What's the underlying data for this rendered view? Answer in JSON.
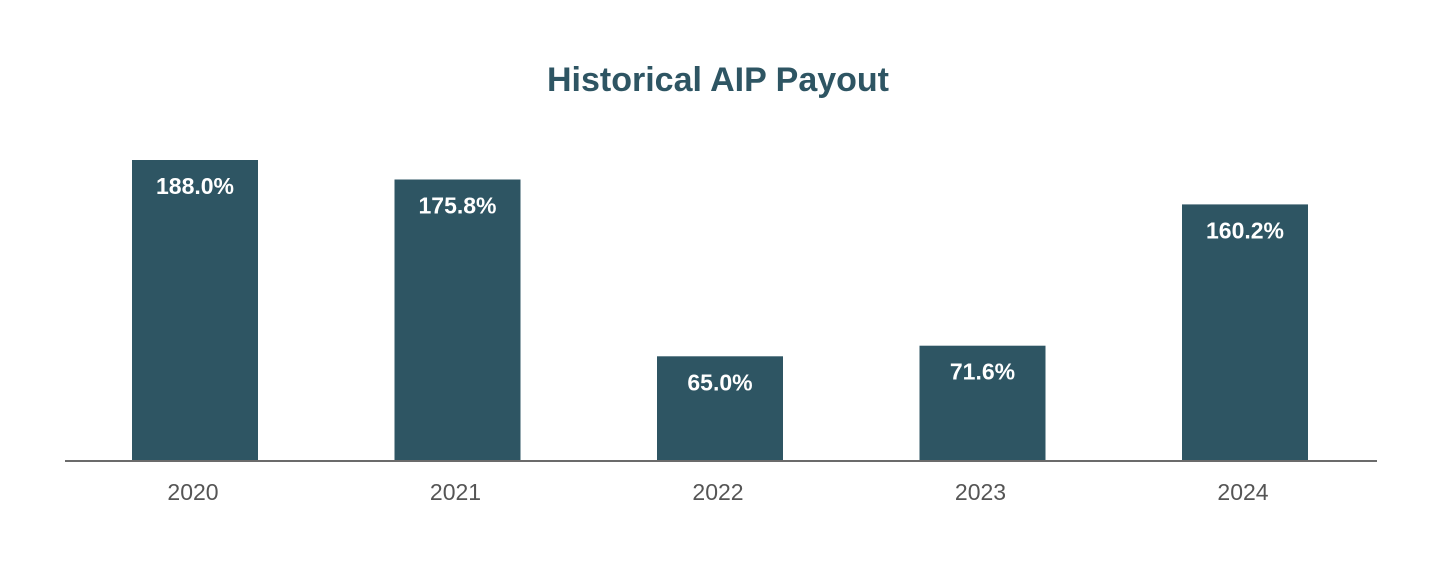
{
  "chart_data": {
    "type": "bar",
    "title": "Historical AIP Payout",
    "xlabel": "",
    "ylabel": "",
    "categories": [
      "2020",
      "2021",
      "2022",
      "2023",
      "2024"
    ],
    "values": [
      188.0,
      175.8,
      65.0,
      71.6,
      160.2
    ],
    "data_labels": [
      "188.0%",
      "175.8%",
      "65.0%",
      "71.6%",
      "160.2%"
    ],
    "ylim": [
      0,
      188
    ],
    "grid": false,
    "legend": "none",
    "colors": {
      "bar": "#2e5563",
      "title": "#2e5563",
      "data_label": "#ffffff",
      "tick_label": "#555555",
      "axis": "#6b6b6b"
    }
  }
}
